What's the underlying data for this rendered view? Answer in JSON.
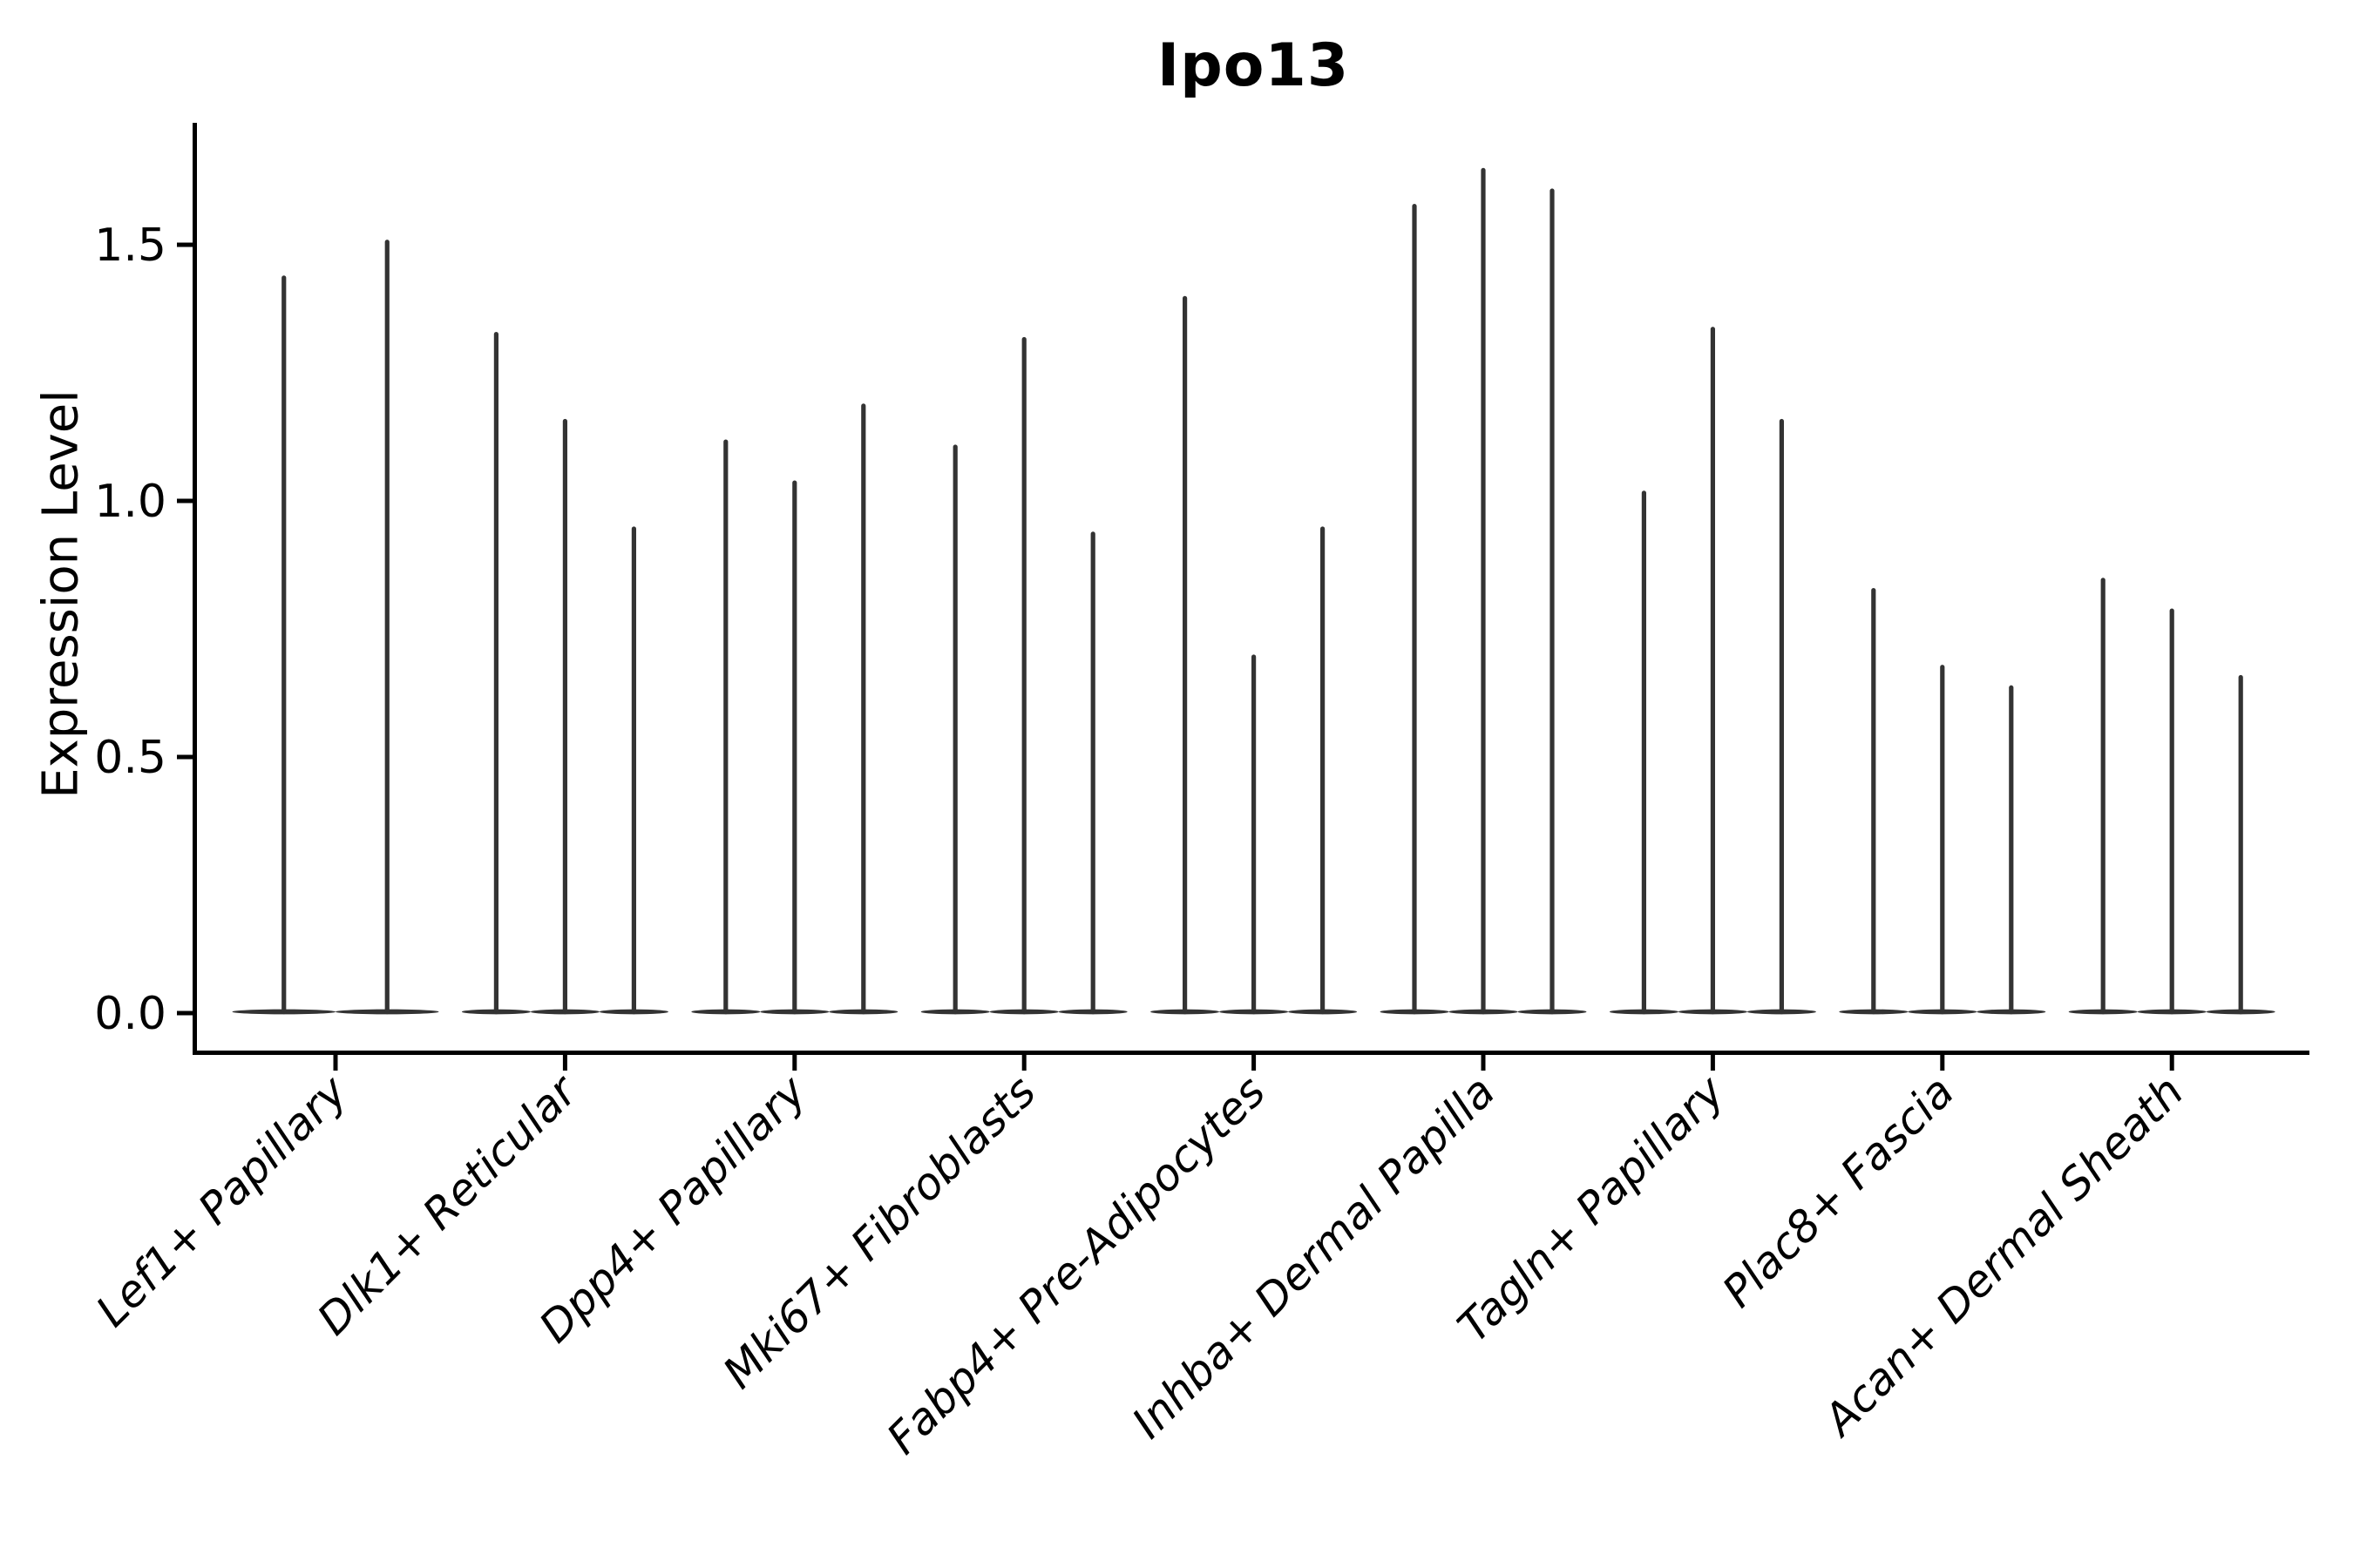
{
  "figure": {
    "title": "Ipo13",
    "y_axis_title": "Expression Level"
  },
  "chart_data": {
    "type": "violin",
    "title": "Ipo13",
    "xlabel": "",
    "ylabel": "Expression Level",
    "ylim": [
      0,
      1.74
    ],
    "yticks": [
      0.0,
      0.5,
      1.0,
      1.5
    ],
    "ytick_labels": [
      "0.0",
      "0.5",
      "1.0",
      "1.5"
    ],
    "grid": false,
    "legend": "none",
    "x_label_angle_deg": 45,
    "x_label_style": "italic",
    "categories": [
      "Lef1+ Papillary",
      "Dlk1+ Reticular",
      "Dpp4+ Papillary",
      "Mki67+ Fibroblasts",
      "Fabp4+ Pre-Adipocytes",
      "Inhba+ Dermal Papilla",
      "Tagln+ Papillary",
      "Plac8+ Fascia",
      "Acan+ Dermal Sheath"
    ],
    "series": [
      {
        "category": "Lef1+ Papillary",
        "violin_max_values": [
          1.44,
          1.51
        ]
      },
      {
        "category": "Dlk1+ Reticular",
        "violin_max_values": [
          1.33,
          1.16,
          0.95
        ]
      },
      {
        "category": "Dpp4+ Papillary",
        "violin_max_values": [
          1.12,
          1.04,
          1.19
        ]
      },
      {
        "category": "Mki67+ Fibroblasts",
        "violin_max_values": [
          1.11,
          1.32,
          0.94
        ]
      },
      {
        "category": "Fabp4+ Pre-Adipocytes",
        "violin_max_values": [
          1.4,
          0.7,
          0.95
        ]
      },
      {
        "category": "Inhba+ Dermal Papilla",
        "violin_max_values": [
          1.58,
          1.65,
          1.61
        ]
      },
      {
        "category": "Tagln+ Papillary",
        "violin_max_values": [
          1.02,
          1.34,
          1.16
        ]
      },
      {
        "category": "Plac8+ Fascia",
        "violin_max_values": [
          0.83,
          0.68,
          0.64
        ]
      },
      {
        "category": "Acan+ Dermal Sheath",
        "violin_max_values": [
          0.85,
          0.79,
          0.66
        ]
      }
    ],
    "violin_shape": "thin spike with flat base at zero (expression concentrated at 0 with sparse high-expressing cells)",
    "colors": {
      "violin": "#333333",
      "axis": "#000000",
      "text": "#000000",
      "background": "#ffffff"
    }
  }
}
